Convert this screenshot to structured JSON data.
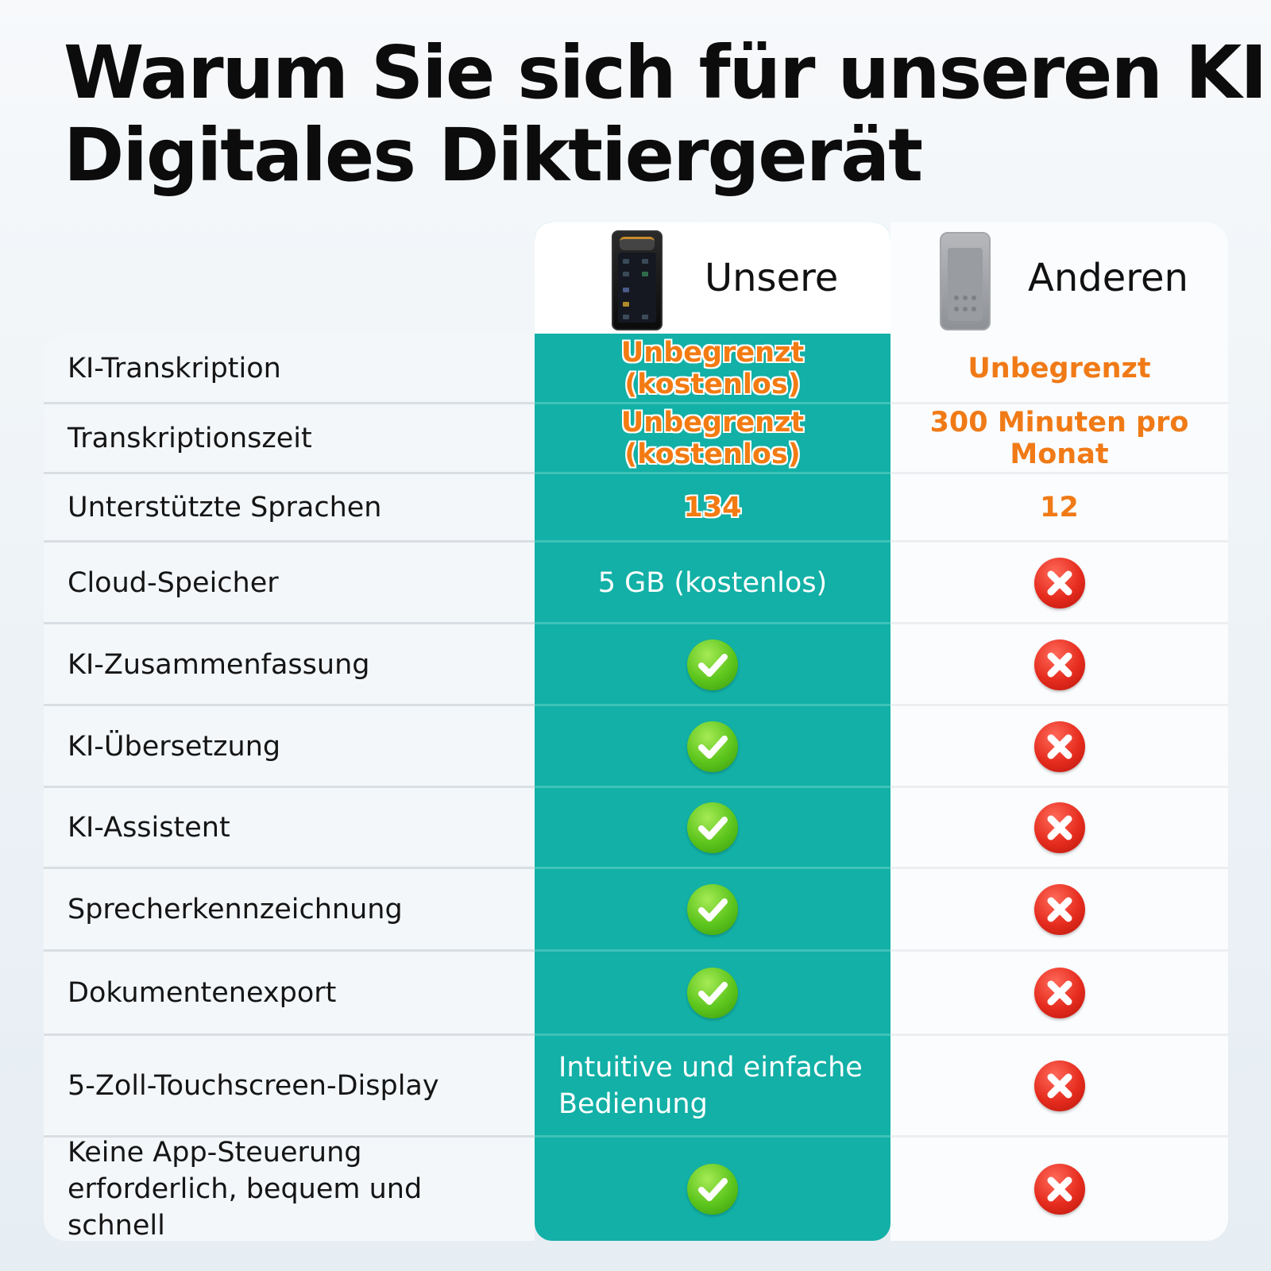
{
  "title": {
    "line1": "Warum Sie sich für unseren KI",
    "line2": "Digitales Diktiergerät"
  },
  "columns": {
    "ours": "Unsere",
    "others": "Anderen"
  },
  "colors": {
    "ours_column": "#12b0a6",
    "highlight_orange": "#f37b12",
    "check_green": "#5cc51c",
    "cross_red": "#e52c1e"
  },
  "rows": [
    {
      "label": "KI-Transkription",
      "ours": "Unbegrenzt (kostenlos)",
      "others": "Unbegrenzt"
    },
    {
      "label": "Transkriptionszeit",
      "ours": "Unbegrenzt (kostenlos)",
      "others": "300 Minuten pro Monat"
    },
    {
      "label": "Unterstützte Sprachen",
      "ours": "134",
      "others": "12"
    },
    {
      "label": "Cloud-Speicher",
      "ours": "5 GB (kostenlos)",
      "others_icon": "cross-icon"
    },
    {
      "label": "KI-Zusammenfassung",
      "ours_icon": "check-icon",
      "others_icon": "cross-icon"
    },
    {
      "label": "KI-Übersetzung",
      "ours_icon": "check-icon",
      "others_icon": "cross-icon"
    },
    {
      "label": "KI-Assistent",
      "ours_icon": "check-icon",
      "others_icon": "cross-icon"
    },
    {
      "label": "Sprecherkennzeichnung",
      "ours_icon": "check-icon",
      "others_icon": "cross-icon"
    },
    {
      "label": "Dokumentenexport",
      "ours_icon": "check-icon",
      "others_icon": "cross-icon"
    },
    {
      "label": "5-Zoll-Touchscreen-Display",
      "ours": "Intuitive und einfache Bedienung",
      "others_icon": "cross-icon"
    },
    {
      "label": "Keine App-Steuerung erforderlich, bequem und schnell",
      "ours_icon": "check-icon",
      "others_icon": "cross-icon"
    }
  ]
}
